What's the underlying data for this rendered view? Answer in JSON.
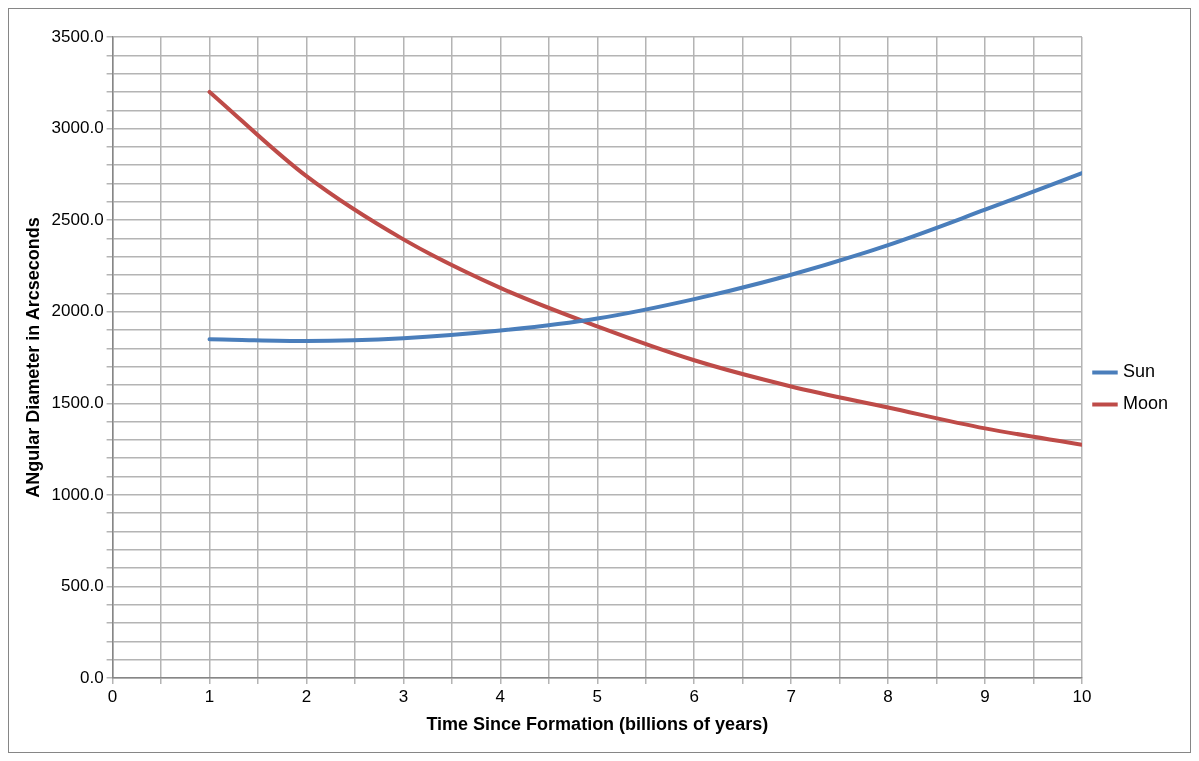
{
  "chart_data": {
    "type": "line",
    "xlabel": "Time Since Formation (billions of years)",
    "ylabel": "ANgular Diameter in Arcseconds",
    "x": [
      1,
      2,
      3,
      4,
      5,
      6,
      7,
      8,
      9,
      10
    ],
    "series": [
      {
        "name": "Sun",
        "color": "#4a7ebb",
        "values": [
          1850,
          1840,
          1855,
          1897,
          1963,
          2069,
          2202,
          2364,
          2557,
          2757
        ]
      },
      {
        "name": "Moon",
        "color": "#be4b48",
        "values": [
          3200,
          2740,
          2395,
          2130,
          1920,
          1735,
          1592,
          1477,
          1363,
          1274
        ]
      }
    ],
    "xlim": [
      0,
      10
    ],
    "xticks": [
      0,
      {
        "value": 0.5,
        "label": null
      },
      1,
      {
        "value": 1.5,
        "label": null
      },
      2,
      {
        "value": 2.5,
        "label": null
      },
      3,
      {
        "value": 3.5,
        "label": null
      },
      4,
      {
        "value": 4.5,
        "label": null
      },
      5,
      {
        "value": 5.5,
        "label": null
      },
      6,
      {
        "value": 6.5,
        "label": null
      },
      7,
      {
        "value": 7.5,
        "label": null
      },
      8,
      {
        "value": 8.5,
        "label": null
      },
      9,
      {
        "value": 9.5,
        "label": null
      },
      10
    ],
    "ylim": [
      0,
      3500
    ],
    "yticks": [
      {
        "value": 0,
        "label": "0.0"
      },
      {
        "value": 100,
        "label": null
      },
      {
        "value": 200,
        "label": null
      },
      {
        "value": 300,
        "label": null
      },
      {
        "value": 400,
        "label": null
      },
      {
        "value": 500,
        "label": "500.0"
      },
      {
        "value": 600,
        "label": null
      },
      {
        "value": 700,
        "label": null
      },
      {
        "value": 800,
        "label": null
      },
      {
        "value": 900,
        "label": null
      },
      {
        "value": 1000,
        "label": "1000.0"
      },
      {
        "value": 1100,
        "label": null
      },
      {
        "value": 1200,
        "label": null
      },
      {
        "value": 1300,
        "label": null
      },
      {
        "value": 1400,
        "label": null
      },
      {
        "value": 1500,
        "label": "1500.0"
      },
      {
        "value": 1600,
        "label": null
      },
      {
        "value": 1700,
        "label": null
      },
      {
        "value": 1800,
        "label": null
      },
      {
        "value": 1900,
        "label": null
      },
      {
        "value": 2000,
        "label": "2000.0"
      },
      {
        "value": 2100,
        "label": null
      },
      {
        "value": 2200,
        "label": null
      },
      {
        "value": 2300,
        "label": null
      },
      {
        "value": 2400,
        "label": null
      },
      {
        "value": 2500,
        "label": "2500.0"
      },
      {
        "value": 2600,
        "label": null
      },
      {
        "value": 2700,
        "label": null
      },
      {
        "value": 2800,
        "label": null
      },
      {
        "value": 2900,
        "label": null
      },
      {
        "value": 3000,
        "label": "3000.0"
      },
      {
        "value": 3100,
        "label": null
      },
      {
        "value": 3200,
        "label": null
      },
      {
        "value": 3300,
        "label": null
      },
      {
        "value": 3400,
        "label": null
      },
      {
        "value": 3500,
        "label": "3500.0"
      }
    ],
    "grid": true,
    "legend": "right",
    "marker": "none",
    "line_style": "solid"
  }
}
